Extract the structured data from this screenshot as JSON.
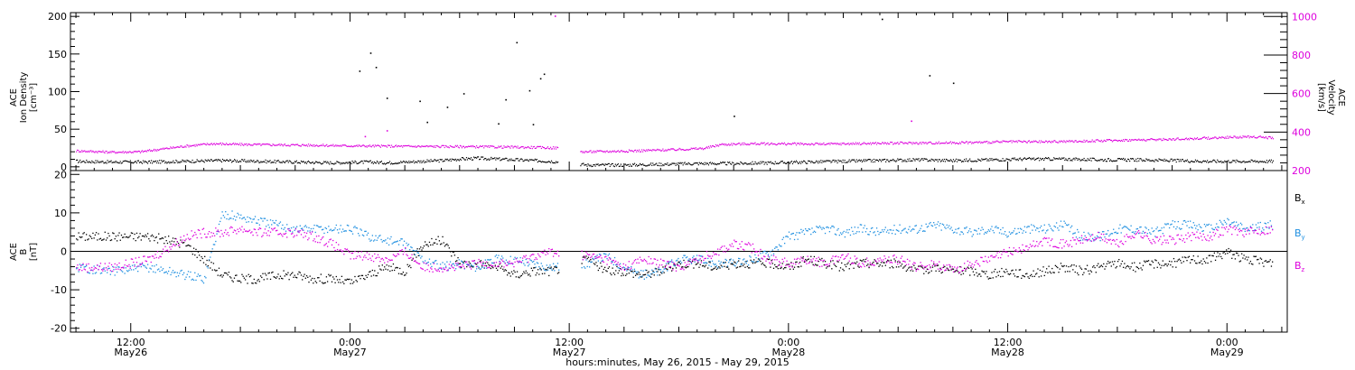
{
  "chart_data": [
    {
      "type": "scatter",
      "panel": "top",
      "ylabel_lines": [
        "ACE",
        "Ion Density",
        "[cm⁻³]"
      ],
      "ylabel_right_lines": [
        "ACE",
        "Velocity",
        "[km/s]"
      ],
      "xlim_hours": [
        -3.3,
        63.3
      ],
      "ylim": [
        -5,
        205
      ],
      "ylim_right": [
        200,
        1020
      ],
      "y_ticks": [
        0,
        50,
        100,
        150,
        200
      ],
      "y_tick_labels": [
        "0",
        "50",
        "100",
        "150",
        "200"
      ],
      "y_right_ticks": [
        200,
        400,
        600,
        800,
        1000
      ],
      "y_right_tick_labels": [
        "200",
        "400",
        "600",
        "800",
        "1000"
      ],
      "data_gap_hours": [
        23.4,
        24.6
      ],
      "series": [
        {
          "name": "",
          "axis": "left",
          "color": "#000000",
          "points": [
            [
              -3.0,
              8
            ],
            [
              -1,
              7
            ],
            [
              1,
              7
            ],
            [
              3,
              8
            ],
            [
              5,
              9
            ],
            [
              7,
              8
            ],
            [
              9,
              7
            ],
            [
              11,
              6
            ],
            [
              13,
              7
            ],
            [
              14,
              6
            ],
            [
              15,
              7
            ],
            [
              16,
              8
            ],
            [
              17,
              9
            ],
            [
              18,
              11
            ],
            [
              19,
              12
            ],
            [
              20,
              11
            ],
            [
              21,
              10
            ],
            [
              22,
              9
            ],
            [
              23,
              8
            ],
            [
              25,
              3
            ],
            [
              27,
              3
            ],
            [
              29,
              4
            ],
            [
              31,
              5
            ],
            [
              33,
              5
            ],
            [
              35,
              6
            ],
            [
              37,
              7
            ],
            [
              39,
              8
            ],
            [
              41,
              9
            ],
            [
              43,
              10
            ],
            [
              45,
              9
            ],
            [
              47,
              10
            ],
            [
              49,
              11
            ],
            [
              51,
              11
            ],
            [
              53,
              10
            ],
            [
              55,
              10
            ],
            [
              57,
              9
            ],
            [
              59,
              8
            ],
            [
              61,
              8
            ],
            [
              62.5,
              8
            ]
          ]
        },
        {
          "name": "",
          "axis": "right",
          "color": "#dd00dd",
          "points": [
            [
              -3.0,
              305
            ],
            [
              -1,
              298
            ],
            [
              0.5,
              300
            ],
            [
              1.5,
              312
            ],
            [
              3,
              330
            ],
            [
              4.5,
              342
            ],
            [
              6,
              338
            ],
            [
              8,
              336
            ],
            [
              10,
              334
            ],
            [
              12,
              331
            ],
            [
              14,
              329
            ],
            [
              16,
              328
            ],
            [
              18,
              327
            ],
            [
              20,
              325
            ],
            [
              22,
              323
            ],
            [
              23.3,
              320
            ],
            [
              24.7,
              300
            ],
            [
              26,
              302
            ],
            [
              28,
              306
            ],
            [
              30,
              312
            ],
            [
              31.4,
              318
            ],
            [
              32.3,
              338
            ],
            [
              34,
              342
            ],
            [
              36,
              341
            ],
            [
              38,
              340
            ],
            [
              40,
              343
            ],
            [
              42,
              345
            ],
            [
              44,
              346
            ],
            [
              46,
              348
            ],
            [
              48,
              352
            ],
            [
              50,
              352
            ],
            [
              52,
              355
            ],
            [
              54,
              360
            ],
            [
              56,
              363
            ],
            [
              58,
              368
            ],
            [
              60,
              375
            ],
            [
              61.5,
              378
            ],
            [
              62.5,
              372
            ]
          ]
        }
      ],
      "outliers_density": [
        [
          12.5,
          128
        ],
        [
          13.1,
          152
        ],
        [
          13.4,
          133
        ],
        [
          14.0,
          92
        ],
        [
          15.8,
          88
        ],
        [
          17.3,
          80
        ],
        [
          18.2,
          98
        ],
        [
          20.5,
          90
        ],
        [
          21.1,
          166
        ],
        [
          21.8,
          102
        ],
        [
          22.4,
          118
        ],
        [
          22.6,
          124
        ],
        [
          33.0,
          68
        ],
        [
          43.7,
          122
        ],
        [
          45.0,
          112
        ],
        [
          41.1,
          197
        ],
        [
          22.0,
          57
        ],
        [
          16.2,
          60
        ],
        [
          20.1,
          58
        ]
      ],
      "outliers_velocity": [
        [
          23.2,
          1005
        ],
        [
          42.7,
          460
        ],
        [
          12.8,
          380
        ],
        [
          14.0,
          410
        ]
      ]
    },
    {
      "type": "line",
      "panel": "bottom",
      "ylabel_lines": [
        "ACE",
        "B",
        "[nT]"
      ],
      "xlim_hours": [
        -3.3,
        63.3
      ],
      "ylim": [
        -21,
        21
      ],
      "y_ticks": [
        -20,
        -10,
        0,
        10,
        20
      ],
      "y_tick_labels": [
        "-20",
        "-10",
        "0",
        "10",
        "20"
      ],
      "zero_line": true,
      "data_gap_hours": [
        23.4,
        24.6
      ],
      "legend_position": "right",
      "x": [
        -3,
        -1,
        1,
        3,
        4,
        5,
        6,
        7,
        8,
        9,
        10,
        11,
        12,
        13,
        14,
        15,
        16,
        17,
        18,
        19,
        20,
        21,
        22,
        23,
        25,
        26,
        27,
        28,
        29,
        30,
        31,
        32,
        33,
        34,
        35,
        36,
        37,
        38,
        39,
        40,
        41,
        42,
        43,
        44,
        45,
        46,
        47,
        48,
        49,
        50,
        51,
        52,
        53,
        54,
        55,
        56,
        57,
        58,
        59,
        60,
        61,
        62.5
      ],
      "series": [
        {
          "name_base": "B",
          "name_sub": "x",
          "color": "#000000",
          "values": [
            4,
            4,
            4,
            2,
            -2,
            -6,
            -7,
            -7,
            -6,
            -6,
            -7,
            -7,
            -8,
            -6,
            -4,
            -5,
            2,
            3,
            -3,
            -3,
            -4,
            -6,
            -5,
            -5,
            -2,
            -5,
            -5,
            -6,
            -5,
            -3,
            -3,
            -4,
            -3,
            -3,
            -3,
            -4,
            -2,
            -3,
            -4,
            -3,
            -3,
            -3,
            -5,
            -4,
            -5,
            -5,
            -6,
            -5,
            -6,
            -5,
            -4,
            -5,
            -4,
            -3,
            -4,
            -3,
            -3,
            -2,
            -2,
            0,
            -2,
            -3
          ]
        },
        {
          "name_base": "B",
          "name_sub": "y",
          "color": "#1e8fe0",
          "values": [
            -4,
            -5,
            -4,
            -6,
            -7,
            10,
            9,
            8,
            7,
            6,
            6,
            6,
            6,
            4,
            3,
            2,
            -2,
            -4,
            -3,
            -4,
            -2,
            -2,
            -3,
            -4,
            -3,
            -1,
            -4,
            -6,
            -5,
            -2,
            -2,
            -3,
            -3,
            -2,
            0,
            4,
            5,
            6,
            5,
            6,
            5,
            6,
            6,
            7,
            6,
            5,
            6,
            5,
            6,
            6,
            7,
            4,
            4,
            6,
            6,
            5,
            7,
            7,
            6,
            8,
            6,
            7
          ]
        },
        {
          "name_base": "B",
          "name_sub": "z",
          "color": "#dd00dd",
          "values": [
            -4,
            -4,
            -2,
            4,
            5,
            5,
            6,
            5,
            5,
            5,
            4,
            2,
            -1,
            -1,
            -2,
            0,
            -4,
            -4,
            -4,
            -3,
            -3,
            -3,
            -1,
            0,
            -1,
            -2,
            -4,
            -2,
            -3,
            -4,
            -2,
            0,
            2,
            1,
            -2,
            -3,
            -2,
            -3,
            -1,
            -3,
            -2,
            -2,
            -4,
            -3,
            -5,
            -3,
            -2,
            0,
            1,
            3,
            2,
            3,
            4,
            2,
            5,
            3,
            3,
            4,
            4,
            6,
            5,
            6
          ]
        }
      ]
    }
  ],
  "x_axis": {
    "ticks": [
      {
        "hour": 0,
        "time": "12:00",
        "date": "May26"
      },
      {
        "hour": 12,
        "time": "0:00",
        "date": "May27"
      },
      {
        "hour": 24,
        "time": "12:00",
        "date": "May27"
      },
      {
        "hour": 36,
        "time": "0:00",
        "date": "May28"
      },
      {
        "hour": 48,
        "time": "12:00",
        "date": "May28"
      },
      {
        "hour": 60,
        "time": "0:00",
        "date": "May29"
      }
    ],
    "title": "hours:minutes, May 26, 2015 - May 29, 2015"
  }
}
